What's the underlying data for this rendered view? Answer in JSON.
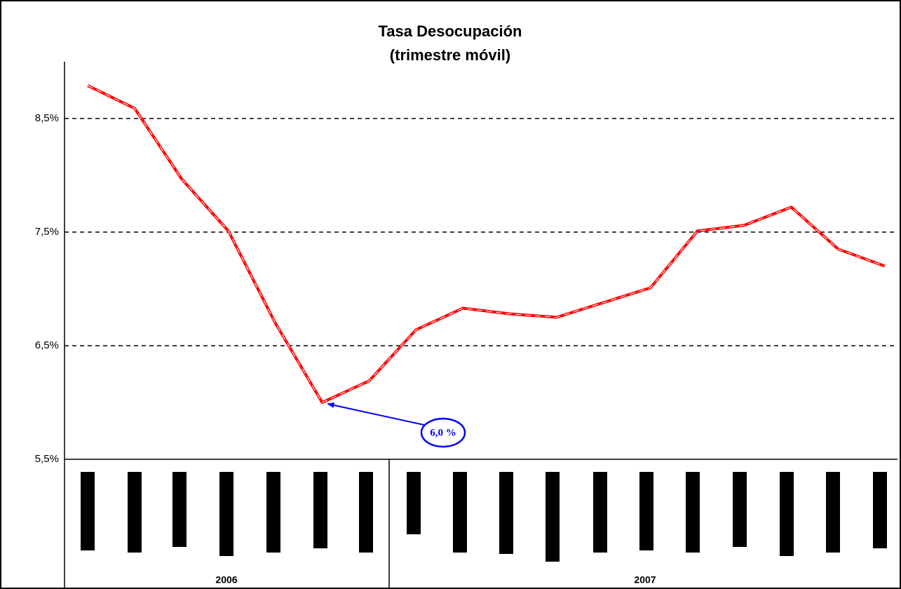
{
  "chart_data": {
    "type": "line",
    "title": "Tasa Desocupación",
    "subtitle": "(trimestre móvil)",
    "categories": [
      null,
      null,
      null,
      null,
      null,
      null,
      null,
      null,
      null,
      null,
      null,
      null,
      null,
      null,
      null,
      null,
      null,
      null
    ],
    "groups": [
      "2006",
      "2007"
    ],
    "series": [
      {
        "color": "#ff0000",
        "values": [
          8.79,
          8.59,
          7.97,
          7.51,
          6.7,
          6.0,
          6.19,
          6.64,
          6.83,
          6.78,
          6.75,
          6.88,
          7.01,
          7.51,
          7.56,
          7.72,
          7.35,
          7.2
        ]
      }
    ],
    "ylim": [
      5.5,
      9.0
    ],
    "yticks": [
      {
        "value": 5.5,
        "label": "5,5%"
      },
      {
        "value": 6.5,
        "label": "6,5%"
      },
      {
        "value": 7.5,
        "label": "7,5%"
      },
      {
        "value": 8.5,
        "label": "8,5%"
      }
    ],
    "grid": true,
    "annotation": "6,0 %"
  }
}
